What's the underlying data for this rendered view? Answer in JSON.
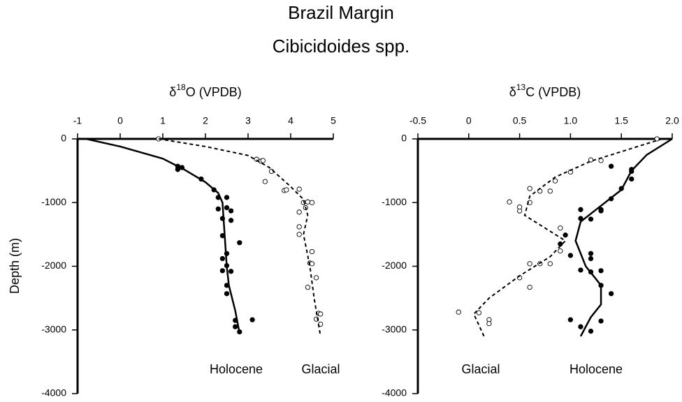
{
  "title": "Brazil Margin",
  "subtitle": "Cibicidoides spp.",
  "chart_data": [
    {
      "type": "scatter",
      "xlabel": {
        "prefix": "δ",
        "sup": "18",
        "suffix": "O (VPDB)"
      },
      "ylabel": "Depth (m)",
      "xlim": [
        -1,
        5
      ],
      "xticks": [
        -1,
        0,
        1,
        2,
        3,
        4,
        5
      ],
      "ylim": [
        -4000,
        0
      ],
      "yticks": [
        0,
        -1000,
        -2000,
        -3000,
        -4000
      ],
      "annotations": [
        "Holocene",
        "Glacial"
      ],
      "series": [
        {
          "marker": "filled",
          "color": "#000000",
          "x": [
            1.35,
            1.45,
            1.35,
            1.9,
            2.2,
            2.3,
            2.5,
            2.3,
            2.5,
            2.6,
            2.4,
            2.6,
            2.4,
            2.8,
            2.5,
            2.4,
            2.5,
            2.4,
            2.6,
            2.5,
            2.5,
            2.7,
            3.1,
            2.7,
            2.8
          ],
          "values": [
            -430,
            -450,
            -480,
            -630,
            -800,
            -920,
            -920,
            -1100,
            -1080,
            -1130,
            -1250,
            -1280,
            -1520,
            -1630,
            -1800,
            -1880,
            -1990,
            -2070,
            -2080,
            -2300,
            -2430,
            -2850,
            -2840,
            -2950,
            -3030
          ]
        },
        {
          "marker": "open",
          "color": "#000000",
          "x": [
            0.9,
            3.2,
            3.3,
            3.35,
            3.55,
            3.4,
            3.85,
            3.9,
            4.2,
            4.3,
            4.4,
            4.5,
            4.2,
            4.35,
            4.2,
            4.2,
            4.5,
            4.45,
            4.5,
            4.6,
            4.4,
            4.65,
            4.7,
            4.6,
            4.7
          ],
          "values": [
            0,
            -320,
            -350,
            -340,
            -510,
            -670,
            -810,
            -800,
            -790,
            -1000,
            -990,
            -1000,
            -1150,
            -1080,
            -1380,
            -1500,
            -1770,
            -1950,
            -1960,
            -2180,
            -2330,
            -2740,
            -2750,
            -2830,
            -2910
          ]
        },
        {
          "line": "solid",
          "color": "#000000",
          "x": [
            -0.8,
            0,
            1,
            1.5,
            2,
            2.3,
            2.4,
            2.45,
            2.5,
            2.55,
            2.7,
            2.8
          ],
          "values": [
            0,
            -120,
            -310,
            -480,
            -680,
            -850,
            -1000,
            -1500,
            -2000,
            -2300,
            -2700,
            -3050
          ]
        },
        {
          "line": "dashed",
          "color": "#000000",
          "x": [
            0.9,
            2,
            3,
            3.5,
            4,
            4.3,
            4.4,
            4.3,
            4.45,
            4.55,
            4.7
          ],
          "values": [
            0,
            -120,
            -260,
            -450,
            -750,
            -950,
            -1200,
            -1500,
            -2000,
            -2500,
            -3100
          ]
        }
      ]
    },
    {
      "type": "scatter",
      "xlabel": {
        "prefix": "δ",
        "sup": "13",
        "suffix": "C (VPDB)"
      },
      "xlim": [
        -0.5,
        2.0
      ],
      "xticks": [
        -0.5,
        0,
        0.5,
        {
          "value": 1,
          "label": "1.0"
        },
        1.5,
        {
          "value": 2,
          "label": "2.0"
        }
      ],
      "ylim": [
        -4000,
        0
      ],
      "yticks": [
        0,
        -1000,
        -2000,
        -3000,
        -4000
      ],
      "annotations": [
        "Glacial",
        "Holocene"
      ],
      "series": [
        {
          "marker": "open",
          "color": "#000000",
          "x": [
            1.85,
            1.2,
            1.3,
            1.0,
            0.85,
            0.6,
            0.7,
            0.8,
            0.4,
            0.6,
            0.5,
            0.5,
            0.9,
            0.9,
            0.8,
            0.7,
            0.6,
            0.5,
            0.6,
            -0.1,
            0.1,
            0.2,
            0.2
          ],
          "values": [
            0,
            -330,
            -340,
            -520,
            -660,
            -780,
            -820,
            -820,
            -990,
            -1000,
            -1130,
            -1070,
            -1400,
            -1760,
            -1960,
            -1960,
            -1960,
            -2180,
            -2330,
            -2720,
            -2730,
            -2840,
            -2900
          ]
        },
        {
          "marker": "filled",
          "color": "#000000",
          "x": [
            1.4,
            1.6,
            1.6,
            1.6,
            1.5,
            1.4,
            1.1,
            1.3,
            1.3,
            1.1,
            1.2,
            0.95,
            0.9,
            1.2,
            1.2,
            1.0,
            1.1,
            1.2,
            1.3,
            1.3,
            1.4,
            1.0,
            1.3,
            1.1,
            1.2
          ],
          "values": [
            -430,
            -480,
            -510,
            -630,
            -780,
            -940,
            -1110,
            -1110,
            -1130,
            -1250,
            -1260,
            -1510,
            -1650,
            -1800,
            -1880,
            -1830,
            -2060,
            -2090,
            -2070,
            -2300,
            -2430,
            -2840,
            -2860,
            -2950,
            -3020
          ]
        },
        {
          "line": "solid",
          "color": "#000000",
          "x": [
            2.0,
            1.75,
            1.6,
            1.5,
            1.3,
            1.1,
            1.05,
            1.15,
            1.3,
            1.3,
            1.2,
            1.1
          ],
          "values": [
            0,
            -250,
            -500,
            -800,
            -1050,
            -1300,
            -1600,
            -2000,
            -2300,
            -2600,
            -2800,
            -3100
          ]
        },
        {
          "line": "dashed",
          "color": "#000000",
          "x": [
            1.9,
            1.6,
            1.2,
            0.85,
            0.6,
            0.55,
            0.7,
            0.95,
            0.8,
            0.5,
            0.2,
            0.05,
            0.15
          ],
          "values": [
            0,
            -150,
            -350,
            -600,
            -900,
            -1200,
            -1350,
            -1600,
            -1850,
            -2150,
            -2500,
            -2750,
            -3100
          ]
        }
      ]
    }
  ]
}
